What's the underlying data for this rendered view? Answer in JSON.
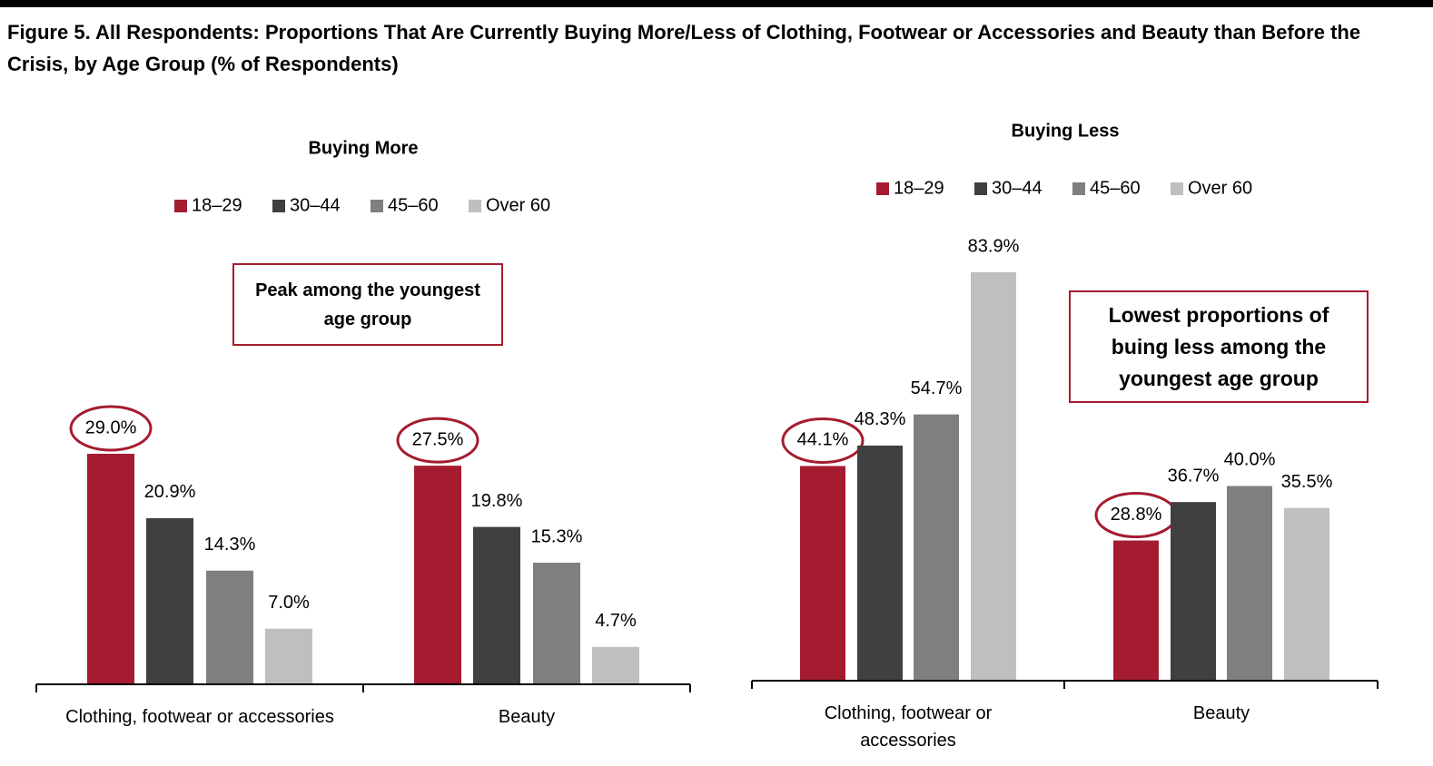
{
  "title": "Figure 5. All Respondents: Proportions That Are Currently Buying More/Less of Clothing, Footwear or Accessories and Beauty than Before the Crisis, by Age Group (% of Respondents)",
  "chart_data": [
    {
      "type": "bar",
      "title": "Buying More",
      "categories": [
        "Clothing, footwear or accessories",
        "Beauty"
      ],
      "series": [
        {
          "name": "18–29",
          "color": "#a51c30",
          "values": [
            29.0,
            27.5
          ],
          "value_labels": [
            "29.0%",
            "27.5%"
          ]
        },
        {
          "name": "30–44",
          "color": "#404040",
          "values": [
            20.9,
            19.8
          ],
          "value_labels": [
            "20.9%",
            "19.8%"
          ]
        },
        {
          "name": "45–60",
          "color": "#7f7f7f",
          "values": [
            14.3,
            15.3
          ],
          "value_labels": [
            "14.3%",
            "15.3%"
          ]
        },
        {
          "name": "Over 60",
          "color": "#bfbfbf",
          "values": [
            7.0,
            4.7
          ],
          "value_labels": [
            "7.0%",
            "4.7%"
          ]
        }
      ],
      "annotation": "Peak among the youngest age group"
    },
    {
      "type": "bar",
      "title": "Buying Less",
      "categories": [
        "Clothing, footwear or accessories",
        "Beauty"
      ],
      "series": [
        {
          "name": "18–29",
          "color": "#a51c30",
          "values": [
            44.1,
            28.8
          ],
          "value_labels": [
            "44.1%",
            "28.8%"
          ]
        },
        {
          "name": "30–44",
          "color": "#404040",
          "values": [
            48.3,
            36.7
          ],
          "value_labels": [
            "48.3%",
            "36.7%"
          ]
        },
        {
          "name": "45–60",
          "color": "#7f7f7f",
          "values": [
            54.7,
            40.0
          ],
          "value_labels": [
            "54.7%",
            "40.0%"
          ]
        },
        {
          "name": "Over 60",
          "color": "#bfbfbf",
          "values": [
            83.9,
            35.5
          ],
          "value_labels": [
            "83.9%",
            "35.5%"
          ]
        }
      ],
      "annotation": "Lowest proportions of buing less among the youngest age group"
    }
  ]
}
